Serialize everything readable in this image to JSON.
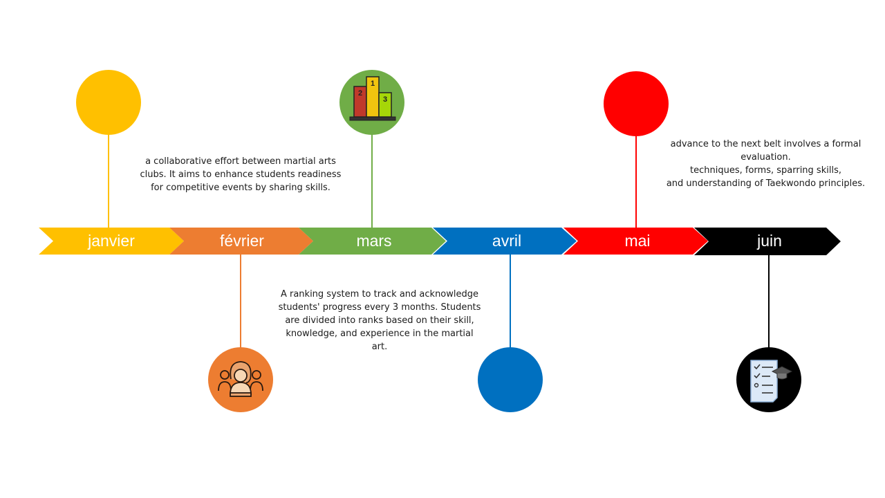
{
  "months": [
    {
      "label": "janvier",
      "color": "#FFC000"
    },
    {
      "label": "février",
      "color": "#ED7D31"
    },
    {
      "label": "mars",
      "color": "#70AD47"
    },
    {
      "label": "avril",
      "color": "#0070C0"
    },
    {
      "label": "mai",
      "color": "#FF0000"
    },
    {
      "label": "juin",
      "color": "#000000"
    }
  ],
  "icons": {
    "mars": "podium-icon",
    "fevrier": "group-leader-icon",
    "juin": "graduation-checklist-icon"
  },
  "podium_ranks": [
    "2",
    "1",
    "3"
  ],
  "descriptions": {
    "janvier": [
      "a collaborative effort between martial arts",
      "clubs. It aims to enhance students readiness",
      "for competitive events by sharing skills."
    ],
    "mars": [
      "A ranking system to track and acknowledge",
      "students' progress every 3 months. Students",
      "are divided into ranks based on their skill,",
      "knowledge, and experience in the martial",
      "art."
    ],
    "mai": [
      "advance to the next belt involves a formal",
      "evaluation.",
      "techniques, forms, sparring skills,",
      "and understanding of Taekwondo principles."
    ]
  }
}
